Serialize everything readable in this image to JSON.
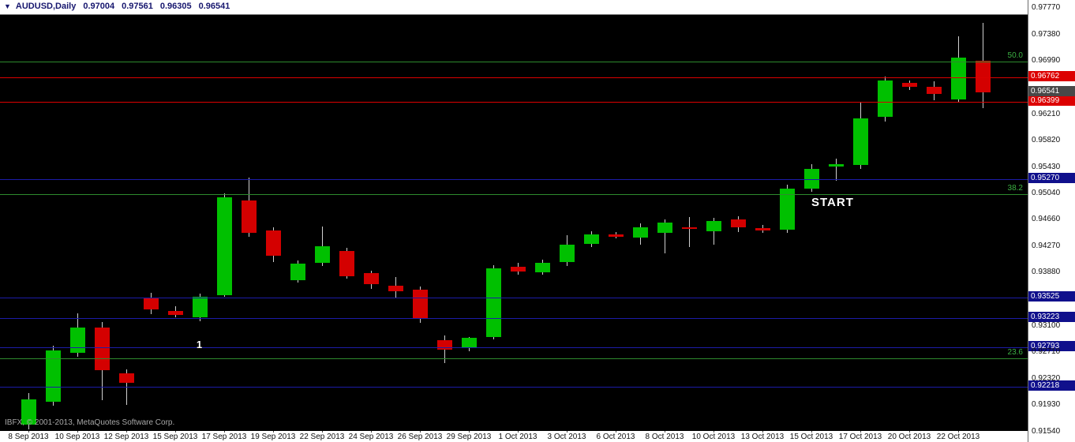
{
  "titlebar": {
    "one_click_arrow": "▼",
    "symbol_timeframe": "AUDUSD,Daily",
    "open": "0.97004",
    "high": "0.97561",
    "low": "0.96305",
    "close": "0.96541"
  },
  "footer": {
    "copyright": "IBFX, © 2001-2013, MetaQuotes Software Corp."
  },
  "colors": {
    "plot_background": "#000000",
    "margin_background": "#ffffff",
    "bull": "#00c000",
    "bear": "#d40000",
    "wick": "#d0d0d0",
    "fib_line": "#2e8b2e",
    "fib_text": "#3cb043",
    "red_line": "#dc0000",
    "red_badge": "#dc0000",
    "navy_line": "#1c1ca8",
    "navy_badge": "#10108c",
    "current_badge": "#484848",
    "axis_text": "#111111",
    "annotation": "#ffffff",
    "quote_text": "#16166e",
    "copyright_text": "#a8a8a8"
  },
  "chart_data": {
    "type": "candlestick",
    "symbol": "AUDUSD",
    "timeframe": "Daily",
    "title": "AUDUSD,Daily",
    "ohlc_columns": [
      "open",
      "high",
      "low",
      "close"
    ],
    "ylim": [
      0.91564,
      0.97677
    ],
    "grid": false,
    "legend": "none",
    "candles": [
      [
        0.9166,
        0.9212,
        0.9159,
        0.9203
      ],
      [
        0.9199,
        0.9282,
        0.9194,
        0.9275
      ],
      [
        0.9271,
        0.9329,
        0.9265,
        0.9308
      ],
      [
        0.9308,
        0.9316,
        0.9202,
        0.9246
      ],
      [
        0.9241,
        0.9247,
        0.9195,
        0.9227
      ],
      [
        0.9352,
        0.9359,
        0.9328,
        0.9335
      ],
      [
        0.9333,
        0.934,
        0.9323,
        0.9327
      ],
      [
        0.9323,
        0.9358,
        0.9318,
        0.9354
      ],
      [
        0.9356,
        0.9506,
        0.9353,
        0.95
      ],
      [
        0.9495,
        0.9529,
        0.9442,
        0.9447
      ],
      [
        0.9451,
        0.9456,
        0.9405,
        0.9414
      ],
      [
        0.9378,
        0.9407,
        0.9374,
        0.9402
      ],
      [
        0.9403,
        0.9457,
        0.9399,
        0.9428
      ],
      [
        0.9421,
        0.9426,
        0.938,
        0.9384
      ],
      [
        0.9388,
        0.9392,
        0.9365,
        0.9372
      ],
      [
        0.937,
        0.9383,
        0.9351,
        0.9362
      ],
      [
        0.9364,
        0.9369,
        0.9315,
        0.9321
      ],
      [
        0.929,
        0.9297,
        0.9256,
        0.9276
      ],
      [
        0.9279,
        0.9295,
        0.9274,
        0.9293
      ],
      [
        0.9294,
        0.94,
        0.9291,
        0.9395
      ],
      [
        0.9398,
        0.9403,
        0.9386,
        0.9391
      ],
      [
        0.939,
        0.9408,
        0.9386,
        0.9403
      ],
      [
        0.9404,
        0.9444,
        0.9399,
        0.943
      ],
      [
        0.9431,
        0.945,
        0.9427,
        0.9445
      ],
      [
        0.9445,
        0.9449,
        0.9439,
        0.9442
      ],
      [
        0.9441,
        0.9462,
        0.943,
        0.9456
      ],
      [
        0.9448,
        0.9467,
        0.9417,
        0.9463
      ],
      [
        0.9456,
        0.9471,
        0.9427,
        0.9453
      ],
      [
        0.945,
        0.947,
        0.943,
        0.9465
      ],
      [
        0.9467,
        0.9472,
        0.9449,
        0.9455
      ],
      [
        0.9454,
        0.9459,
        0.9447,
        0.9451
      ],
      [
        0.9452,
        0.9518,
        0.9447,
        0.9512
      ],
      [
        0.9513,
        0.9549,
        0.9508,
        0.9542
      ],
      [
        0.9545,
        0.9557,
        0.9524,
        0.9549
      ],
      [
        0.9547,
        0.9639,
        0.9542,
        0.9616
      ],
      [
        0.9618,
        0.9677,
        0.9611,
        0.9671
      ],
      [
        0.9668,
        0.9671,
        0.9657,
        0.9662
      ],
      [
        0.9662,
        0.967,
        0.9642,
        0.9652
      ],
      [
        0.9644,
        0.9737,
        0.9639,
        0.9705
      ],
      [
        0.97004,
        0.97561,
        0.96305,
        0.96541
      ]
    ],
    "x_labels": [
      "8 Sep 2013",
      "10 Sep 2013",
      "12 Sep 2013",
      "15 Sep 2013",
      "17 Sep 2013",
      "19 Sep 2013",
      "22 Sep 2013",
      "24 Sep 2013",
      "26 Sep 2013",
      "29 Sep 2013",
      "1 Oct 2013",
      "3 Oct 2013",
      "6 Oct 2013",
      "8 Oct 2013",
      "10 Oct 2013",
      "13 Oct 2013",
      "15 Oct 2013",
      "17 Oct 2013",
      "20 Oct 2013",
      "22 Oct 2013"
    ],
    "label_step": 2,
    "y_axis_labels": [
      "0.97770",
      "0.97380",
      "0.96990",
      "0.96210",
      "0.95820",
      "0.95430",
      "0.95040",
      "0.94660",
      "0.94270",
      "0.93880",
      "0.93100",
      "0.92710",
      "0.92320",
      "0.91930",
      "0.91540"
    ],
    "levels": {
      "fibonacci": [
        {
          "label": "50.0",
          "price": 0.9699
        },
        {
          "label": "38.2",
          "price": 0.9504
        },
        {
          "label": "23.6",
          "price": 0.92627
        }
      ],
      "red_lines": [
        0.96762,
        0.96399
      ],
      "navy_lines": [
        0.9527,
        0.93525,
        0.93223,
        0.92793,
        0.92218
      ],
      "current_price": "0.96541"
    },
    "annotations": [
      {
        "text": "START",
        "x_candle": 32,
        "price": 0.9492,
        "align": "left",
        "size": 15
      },
      {
        "text": "1",
        "x_candle": 7,
        "price": 0.9284,
        "align": "center",
        "size": 13
      }
    ]
  }
}
